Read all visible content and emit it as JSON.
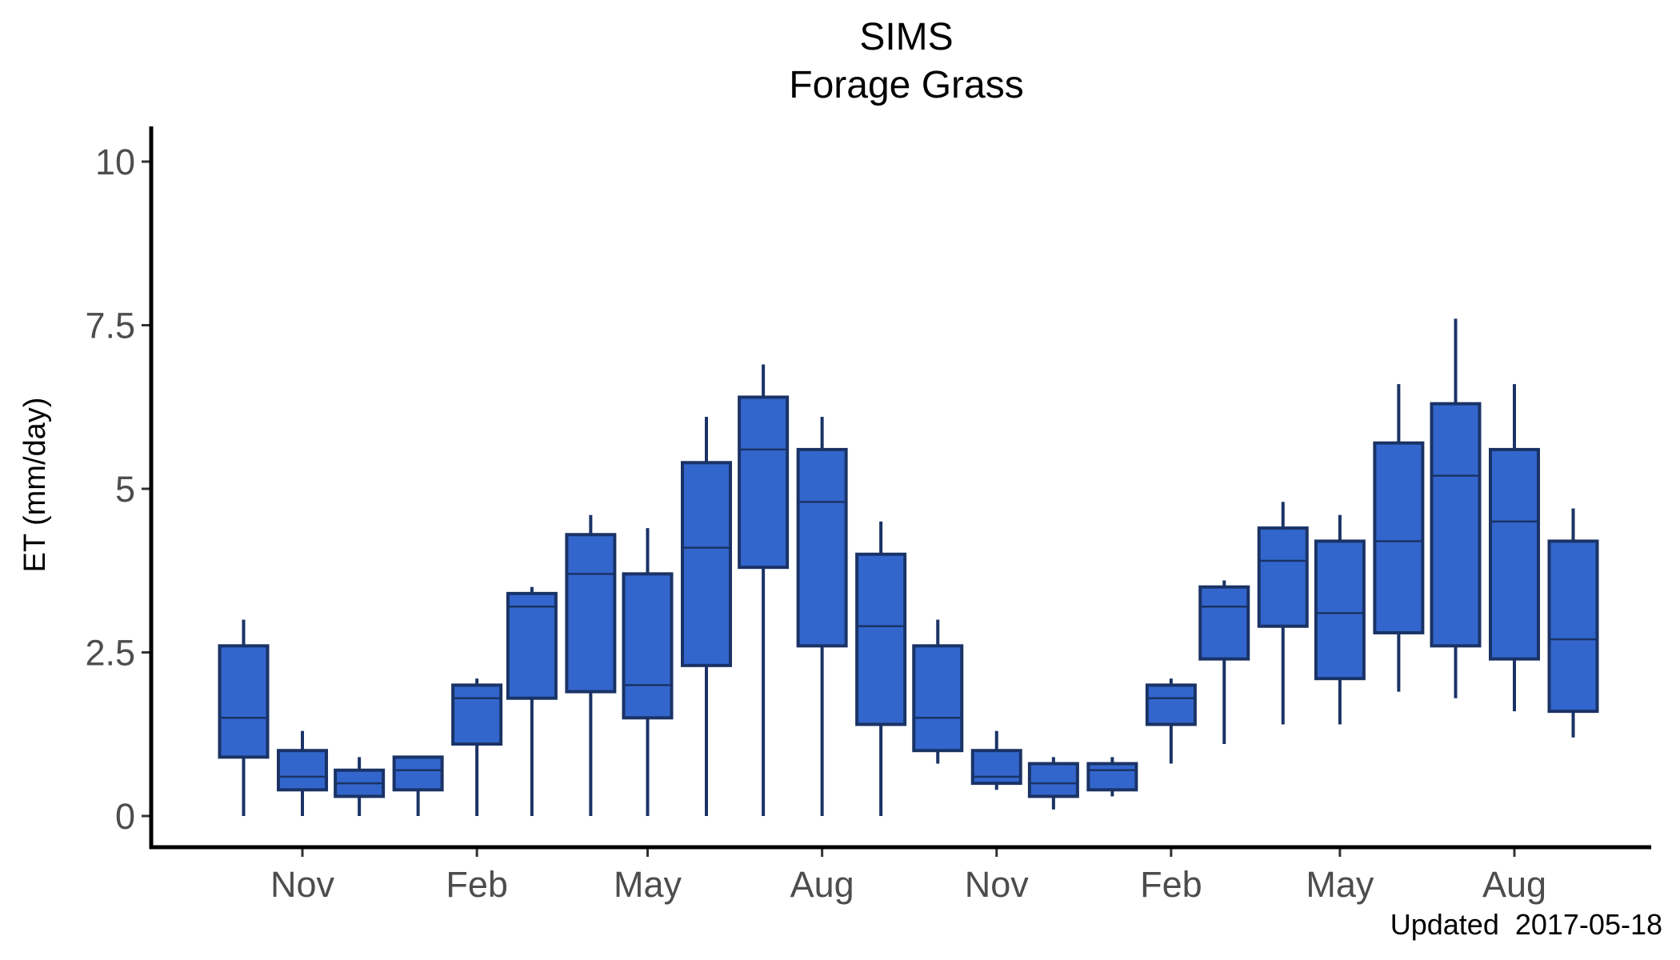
{
  "chart_data": {
    "type": "boxplot",
    "title": "SIMS",
    "subtitle": "Forage Grass",
    "ylabel": "ET (mm/day)",
    "xlabel": "",
    "caption": "Updated  2017-05-18",
    "ylim": [
      -0.45,
      10.5
    ],
    "yticks": [
      0,
      2.5,
      5,
      7.5,
      10
    ],
    "ytick_labels": [
      "0",
      "2.5",
      "5",
      "7.5",
      "10"
    ],
    "xticks": [
      {
        "label": "Nov",
        "x": "2015-11-01"
      },
      {
        "label": "Feb",
        "x": "2016-02-01"
      },
      {
        "label": "May",
        "x": "2016-05-01"
      },
      {
        "label": "Aug",
        "x": "2016-08-01"
      },
      {
        "label": "Nov",
        "x": "2016-11-01"
      },
      {
        "label": "Feb",
        "x": "2017-02-01"
      },
      {
        "label": "May",
        "x": "2017-05-01"
      },
      {
        "label": "Aug",
        "x": "2017-08-01"
      }
    ],
    "fill_color": "#3366cc",
    "stroke_color": "#1a3366",
    "grid": false,
    "boxes": [
      {
        "x": "2015-10-01",
        "low": 0.0,
        "q1": 0.9,
        "median": 1.5,
        "q3": 2.6,
        "high": 3.0
      },
      {
        "x": "2015-11-01",
        "low": 0.0,
        "q1": 0.4,
        "median": 0.6,
        "q3": 1.0,
        "high": 1.3
      },
      {
        "x": "2015-12-01",
        "low": 0.0,
        "q1": 0.3,
        "median": 0.5,
        "q3": 0.7,
        "high": 0.9
      },
      {
        "x": "2016-01-01",
        "low": 0.0,
        "q1": 0.4,
        "median": 0.7,
        "q3": 0.9,
        "high": 0.9
      },
      {
        "x": "2016-02-01",
        "low": 0.0,
        "q1": 1.1,
        "median": 1.8,
        "q3": 2.0,
        "high": 2.1
      },
      {
        "x": "2016-03-01",
        "low": 0.0,
        "q1": 1.8,
        "median": 3.2,
        "q3": 3.4,
        "high": 3.5
      },
      {
        "x": "2016-04-01",
        "low": 0.0,
        "q1": 1.9,
        "median": 3.7,
        "q3": 4.3,
        "high": 4.6
      },
      {
        "x": "2016-05-01",
        "low": 0.0,
        "q1": 1.5,
        "median": 2.0,
        "q3": 3.7,
        "high": 4.4
      },
      {
        "x": "2016-06-01",
        "low": 0.0,
        "q1": 2.3,
        "median": 4.1,
        "q3": 5.4,
        "high": 6.1
      },
      {
        "x": "2016-07-01",
        "low": 0.0,
        "q1": 3.8,
        "median": 5.6,
        "q3": 6.4,
        "high": 6.9
      },
      {
        "x": "2016-08-01",
        "low": 0.0,
        "q1": 2.6,
        "median": 4.8,
        "q3": 5.6,
        "high": 6.1
      },
      {
        "x": "2016-09-01",
        "low": 0.0,
        "q1": 1.4,
        "median": 2.9,
        "q3": 4.0,
        "high": 4.5
      },
      {
        "x": "2016-10-01",
        "low": 0.8,
        "q1": 1.0,
        "median": 1.5,
        "q3": 2.6,
        "high": 3.0
      },
      {
        "x": "2016-11-01",
        "low": 0.4,
        "q1": 0.5,
        "median": 0.6,
        "q3": 1.0,
        "high": 1.3
      },
      {
        "x": "2016-12-01",
        "low": 0.1,
        "q1": 0.3,
        "median": 0.5,
        "q3": 0.8,
        "high": 0.9
      },
      {
        "x": "2017-01-01",
        "low": 0.3,
        "q1": 0.4,
        "median": 0.7,
        "q3": 0.8,
        "high": 0.9
      },
      {
        "x": "2017-02-01",
        "low": 0.8,
        "q1": 1.4,
        "median": 1.8,
        "q3": 2.0,
        "high": 2.1
      },
      {
        "x": "2017-03-01",
        "low": 1.1,
        "q1": 2.4,
        "median": 3.2,
        "q3": 3.5,
        "high": 3.6
      },
      {
        "x": "2017-04-01",
        "low": 1.4,
        "q1": 2.9,
        "median": 3.9,
        "q3": 4.4,
        "high": 4.8
      },
      {
        "x": "2017-05-01",
        "low": 1.4,
        "q1": 2.1,
        "median": 3.1,
        "q3": 4.2,
        "high": 4.6
      },
      {
        "x": "2017-06-01",
        "low": 1.9,
        "q1": 2.8,
        "median": 4.2,
        "q3": 5.7,
        "high": 6.6
      },
      {
        "x": "2017-07-01",
        "low": 1.8,
        "q1": 2.6,
        "median": 5.2,
        "q3": 6.3,
        "high": 7.6
      },
      {
        "x": "2017-08-01",
        "low": 1.6,
        "q1": 2.4,
        "median": 4.5,
        "q3": 5.6,
        "high": 6.6
      },
      {
        "x": "2017-09-01",
        "low": 1.2,
        "q1": 1.6,
        "median": 2.7,
        "q3": 4.2,
        "high": 4.7
      }
    ]
  }
}
